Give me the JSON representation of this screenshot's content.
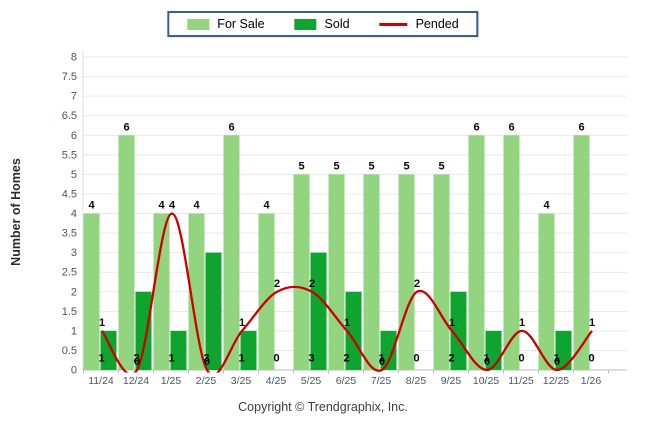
{
  "copyright": "Copyright © Trendgraphix, Inc.",
  "y_axis_title": "Number of Homes",
  "colors": {
    "for_sale": "#92d47f",
    "sold": "#0fa32f",
    "pended": "#cc0000",
    "grid": "#e9e9e9",
    "axis_line": "#bdbdbd",
    "axis_text": "#4b5565",
    "value_label": "#0a0a0a",
    "legend_border": "#376092"
  },
  "chart_data": {
    "type": "bar",
    "title": "",
    "xlabel": "",
    "ylabel": "Number of Homes",
    "ylim": [
      0,
      8
    ],
    "ytick_step": 0.5,
    "grid": true,
    "legend_position": "top",
    "categories": [
      "11/24",
      "12/24",
      "1/25",
      "2/25",
      "3/25",
      "4/25",
      "5/25",
      "6/25",
      "7/25",
      "8/25",
      "9/25",
      "10/25",
      "11/25",
      "12/25",
      "1/26"
    ],
    "series": [
      {
        "name": "For Sale",
        "type": "bar",
        "color": "#92d47f",
        "values": [
          4,
          6,
          4,
          4,
          6,
          4,
          5,
          5,
          5,
          5,
          5,
          6,
          6,
          4,
          6
        ]
      },
      {
        "name": "Sold",
        "type": "bar",
        "color": "#0fa32f",
        "values": [
          1,
          2,
          1,
          3,
          1,
          0,
          3,
          2,
          1,
          0,
          2,
          1,
          0,
          1,
          0
        ]
      },
      {
        "name": "Pended",
        "type": "line",
        "color": "#cc0000",
        "values": [
          1,
          0,
          4,
          0,
          1,
          2,
          2,
          1,
          0,
          2,
          1,
          0,
          1,
          0,
          1
        ]
      }
    ]
  }
}
